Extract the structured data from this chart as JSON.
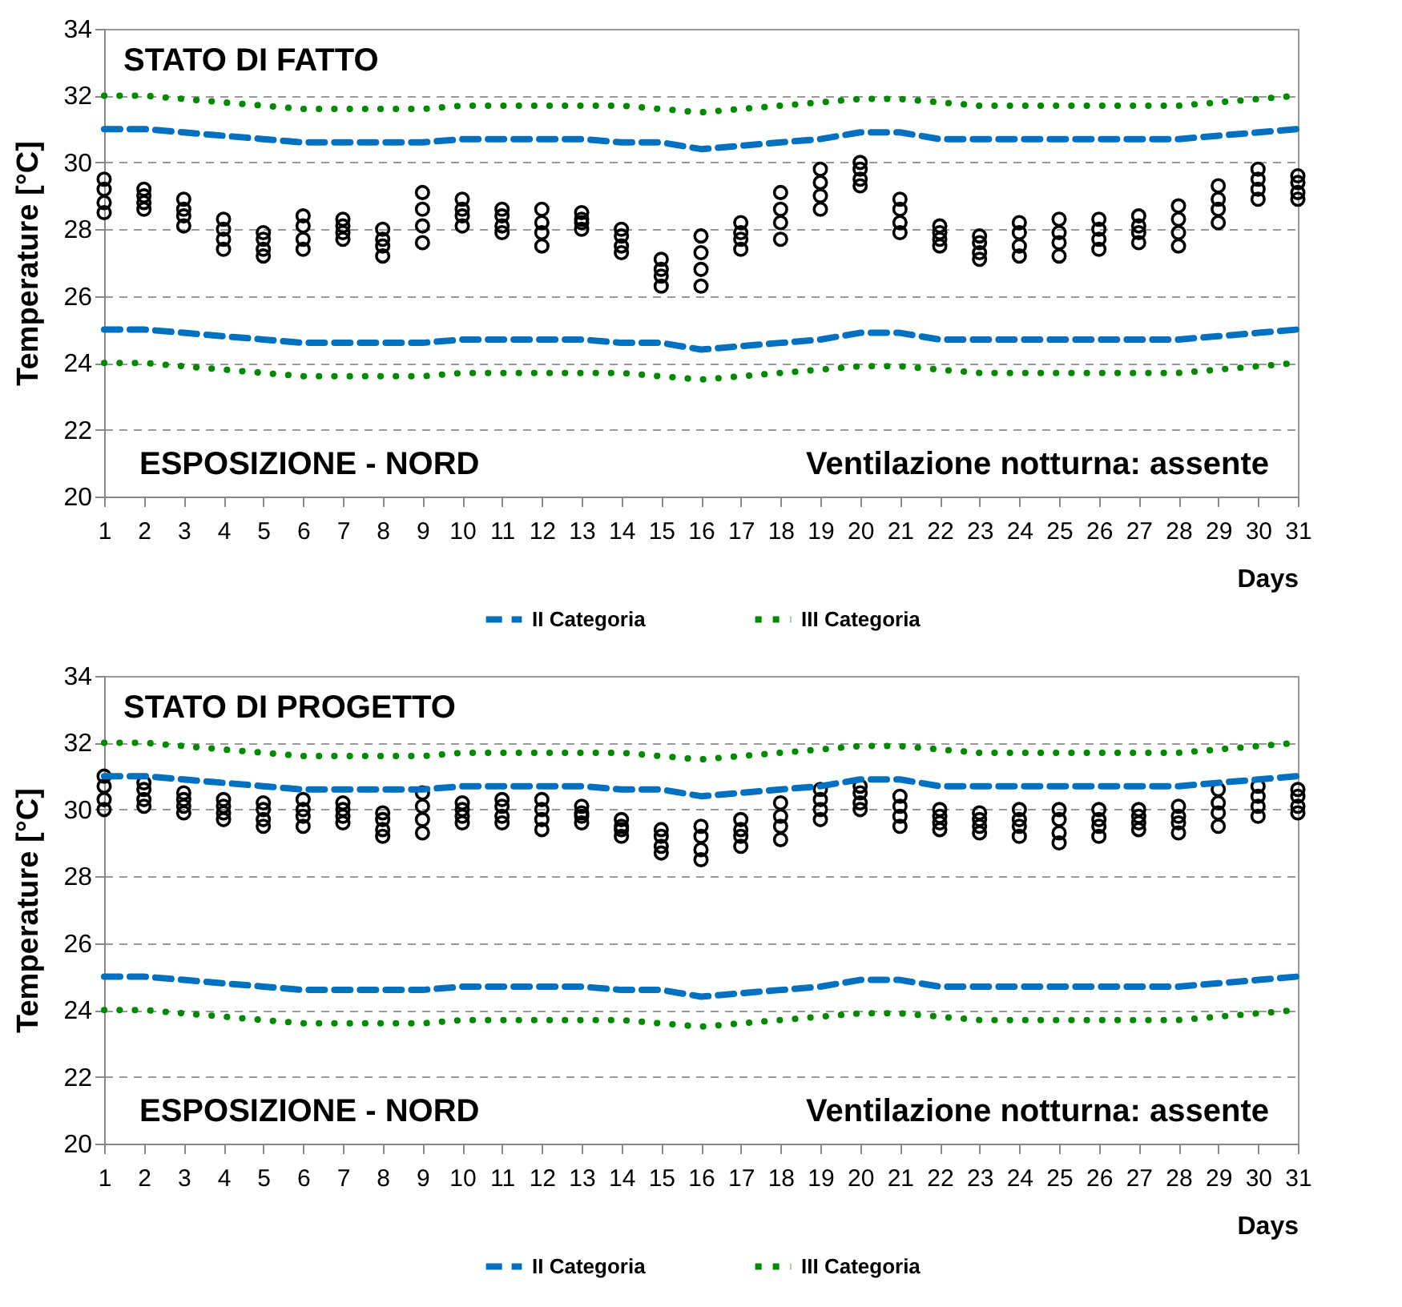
{
  "chart_data": [
    {
      "type": "scatter",
      "ylabel": "Temperature [°C]",
      "xlabel": "Days",
      "xlim": [
        1,
        31
      ],
      "xticks": [
        1,
        2,
        3,
        4,
        5,
        6,
        7,
        8,
        9,
        10,
        11,
        12,
        13,
        14,
        15,
        16,
        17,
        18,
        19,
        20,
        21,
        22,
        23,
        24,
        25,
        26,
        27,
        28,
        29,
        30,
        31
      ],
      "ylim": [
        20,
        34
      ],
      "yticks": [
        20,
        22,
        24,
        26,
        28,
        30,
        32,
        34
      ],
      "grid": "y",
      "legend": "bottom",
      "annotations": [
        "STATO DI FATTO",
        "ESPOSIZIONE - NORD",
        "Ventilazione notturna: assente"
      ],
      "series": [
        {
          "type": "scatter",
          "color": "#000000",
          "marker": "circle",
          "x": [
            1,
            1,
            1,
            1,
            2,
            2,
            2,
            2,
            3,
            3,
            3,
            3,
            4,
            4,
            4,
            4,
            5,
            5,
            5,
            5,
            6,
            6,
            6,
            6,
            7,
            7,
            7,
            7,
            8,
            8,
            8,
            8,
            9,
            9,
            9,
            9,
            10,
            10,
            10,
            10,
            11,
            11,
            11,
            11,
            12,
            12,
            12,
            12,
            13,
            13,
            13,
            13,
            14,
            14,
            14,
            14,
            15,
            15,
            15,
            15,
            16,
            16,
            16,
            16,
            17,
            17,
            17,
            17,
            18,
            18,
            18,
            18,
            19,
            19,
            19,
            19,
            20,
            20,
            20,
            20,
            21,
            21,
            21,
            21,
            22,
            22,
            22,
            22,
            23,
            23,
            23,
            23,
            24,
            24,
            24,
            24,
            25,
            25,
            25,
            25,
            26,
            26,
            26,
            26,
            27,
            27,
            27,
            27,
            28,
            28,
            28,
            28,
            29,
            29,
            29,
            29,
            30,
            30,
            30,
            30,
            31,
            31,
            31,
            31
          ],
          "values": [
            28.5,
            28.8,
            29.2,
            29.5,
            28.6,
            28.8,
            29.0,
            29.2,
            28.1,
            28.4,
            28.6,
            28.9,
            27.4,
            27.7,
            28.0,
            28.3,
            27.2,
            27.4,
            27.7,
            27.9,
            27.4,
            27.7,
            28.1,
            28.4,
            27.7,
            27.9,
            28.1,
            28.3,
            27.2,
            27.5,
            27.7,
            28.0,
            27.6,
            28.1,
            28.6,
            29.1,
            28.1,
            28.4,
            28.6,
            28.9,
            27.9,
            28.1,
            28.4,
            28.6,
            27.5,
            27.9,
            28.2,
            28.6,
            28.0,
            28.2,
            28.3,
            28.5,
            27.3,
            27.5,
            27.8,
            28.0,
            26.3,
            26.6,
            26.8,
            27.1,
            26.3,
            26.8,
            27.3,
            27.8,
            27.4,
            27.7,
            27.9,
            28.2,
            27.7,
            28.2,
            28.6,
            29.1,
            28.6,
            29.0,
            29.4,
            29.8,
            29.3,
            29.5,
            29.8,
            30.0,
            27.9,
            28.2,
            28.6,
            28.9,
            27.5,
            27.7,
            27.9,
            28.1,
            27.1,
            27.3,
            27.6,
            27.8,
            27.2,
            27.5,
            27.9,
            28.2,
            27.2,
            27.6,
            27.9,
            28.3,
            27.4,
            27.7,
            28.0,
            28.3,
            27.6,
            27.9,
            28.1,
            28.4,
            27.5,
            27.9,
            28.3,
            28.7,
            28.2,
            28.6,
            28.9,
            29.3,
            28.9,
            29.2,
            29.5,
            29.8,
            28.9,
            29.1,
            29.4,
            29.6
          ]
        },
        {
          "type": "line",
          "name": "II Categoria",
          "color": "#0070c0",
          "line_style": "dashed",
          "x": [
            1,
            2,
            3,
            4,
            5,
            6,
            7,
            8,
            9,
            10,
            11,
            12,
            13,
            14,
            15,
            16,
            17,
            18,
            19,
            20,
            21,
            22,
            23,
            24,
            25,
            26,
            27,
            28,
            29,
            30,
            31
          ],
          "values": [
            31.0,
            31.0,
            30.9,
            30.8,
            30.7,
            30.6,
            30.6,
            30.6,
            30.6,
            30.7,
            30.7,
            30.7,
            30.7,
            30.6,
            30.6,
            30.4,
            30.5,
            30.6,
            30.7,
            30.9,
            30.9,
            30.7,
            30.7,
            30.7,
            30.7,
            30.7,
            30.7,
            30.7,
            30.8,
            30.9,
            31.0
          ]
        },
        {
          "type": "line",
          "color": "#0070c0",
          "line_style": "dashed",
          "x": [
            1,
            2,
            3,
            4,
            5,
            6,
            7,
            8,
            9,
            10,
            11,
            12,
            13,
            14,
            15,
            16,
            17,
            18,
            19,
            20,
            21,
            22,
            23,
            24,
            25,
            26,
            27,
            28,
            29,
            30,
            31
          ],
          "values": [
            25.0,
            25.0,
            24.9,
            24.8,
            24.7,
            24.6,
            24.6,
            24.6,
            24.6,
            24.7,
            24.7,
            24.7,
            24.7,
            24.6,
            24.6,
            24.4,
            24.5,
            24.6,
            24.7,
            24.9,
            24.9,
            24.7,
            24.7,
            24.7,
            24.7,
            24.7,
            24.7,
            24.7,
            24.8,
            24.9,
            25.0
          ]
        },
        {
          "type": "line",
          "name": "III Categoria",
          "color": "#008a00",
          "line_style": "dotted",
          "x": [
            1,
            2,
            3,
            4,
            5,
            6,
            7,
            8,
            9,
            10,
            11,
            12,
            13,
            14,
            15,
            16,
            17,
            18,
            19,
            20,
            21,
            22,
            23,
            24,
            25,
            26,
            27,
            28,
            29,
            30,
            31
          ],
          "values": [
            32.0,
            32.0,
            31.9,
            31.8,
            31.7,
            31.6,
            31.6,
            31.6,
            31.6,
            31.7,
            31.7,
            31.7,
            31.7,
            31.7,
            31.6,
            31.5,
            31.6,
            31.7,
            31.8,
            31.9,
            31.9,
            31.8,
            31.7,
            31.7,
            31.7,
            31.7,
            31.7,
            31.7,
            31.8,
            31.9,
            32.0
          ]
        },
        {
          "type": "line",
          "color": "#008a00",
          "line_style": "dotted",
          "x": [
            1,
            2,
            3,
            4,
            5,
            6,
            7,
            8,
            9,
            10,
            11,
            12,
            13,
            14,
            15,
            16,
            17,
            18,
            19,
            20,
            21,
            22,
            23,
            24,
            25,
            26,
            27,
            28,
            29,
            30,
            31
          ],
          "values": [
            24.0,
            24.0,
            23.9,
            23.8,
            23.7,
            23.6,
            23.6,
            23.6,
            23.6,
            23.7,
            23.7,
            23.7,
            23.7,
            23.7,
            23.6,
            23.5,
            23.6,
            23.7,
            23.8,
            23.9,
            23.9,
            23.8,
            23.7,
            23.7,
            23.7,
            23.7,
            23.7,
            23.7,
            23.8,
            23.9,
            24.0
          ]
        }
      ]
    },
    {
      "type": "scatter",
      "ylabel": "Temperature [°C]",
      "xlabel": "Days",
      "xlim": [
        1,
        31
      ],
      "xticks": [
        1,
        2,
        3,
        4,
        5,
        6,
        7,
        8,
        9,
        10,
        11,
        12,
        13,
        14,
        15,
        16,
        17,
        18,
        19,
        20,
        21,
        22,
        23,
        24,
        25,
        26,
        27,
        28,
        29,
        30,
        31
      ],
      "ylim": [
        20,
        34
      ],
      "yticks": [
        20,
        22,
        24,
        26,
        28,
        30,
        32,
        34
      ],
      "grid": "y",
      "legend": "bottom",
      "annotations": [
        "STATO DI PROGETTO",
        "ESPOSIZIONE - NORD",
        "Ventilazione notturna: assente"
      ],
      "series": [
        {
          "type": "scatter",
          "color": "#000000",
          "marker": "circle",
          "x": [
            1,
            1,
            1,
            1,
            2,
            2,
            2,
            2,
            3,
            3,
            3,
            3,
            4,
            4,
            4,
            4,
            5,
            5,
            5,
            5,
            6,
            6,
            6,
            6,
            7,
            7,
            7,
            7,
            8,
            8,
            8,
            8,
            9,
            9,
            9,
            9,
            10,
            10,
            10,
            10,
            11,
            11,
            11,
            11,
            12,
            12,
            12,
            12,
            13,
            13,
            13,
            13,
            14,
            14,
            14,
            14,
            15,
            15,
            15,
            15,
            16,
            16,
            16,
            16,
            17,
            17,
            17,
            17,
            18,
            18,
            18,
            18,
            19,
            19,
            19,
            19,
            20,
            20,
            20,
            20,
            21,
            21,
            21,
            21,
            22,
            22,
            22,
            22,
            23,
            23,
            23,
            23,
            24,
            24,
            24,
            24,
            25,
            25,
            25,
            25,
            26,
            26,
            26,
            26,
            27,
            27,
            27,
            27,
            28,
            28,
            28,
            28,
            29,
            29,
            29,
            29,
            30,
            30,
            30,
            30,
            31,
            31,
            31,
            31
          ],
          "values": [
            30.0,
            30.3,
            30.7,
            31.0,
            30.1,
            30.3,
            30.6,
            30.8,
            29.9,
            30.1,
            30.3,
            30.5,
            29.7,
            29.9,
            30.1,
            30.3,
            29.5,
            29.7,
            30.0,
            30.2,
            29.5,
            29.8,
            30.0,
            30.3,
            29.6,
            29.8,
            30.0,
            30.2,
            29.2,
            29.4,
            29.7,
            29.9,
            29.3,
            29.7,
            30.1,
            30.5,
            29.6,
            29.8,
            30.0,
            30.2,
            29.6,
            29.8,
            30.1,
            30.3,
            29.4,
            29.7,
            30.0,
            30.3,
            29.6,
            29.8,
            29.9,
            30.1,
            29.2,
            29.4,
            29.5,
            29.7,
            28.7,
            28.9,
            29.2,
            29.4,
            28.5,
            28.8,
            29.2,
            29.5,
            28.9,
            29.2,
            29.4,
            29.7,
            29.1,
            29.5,
            29.8,
            30.2,
            29.7,
            30.0,
            30.3,
            30.6,
            30.0,
            30.2,
            30.5,
            30.7,
            29.5,
            29.8,
            30.1,
            30.4,
            29.4,
            29.6,
            29.8,
            30.0,
            29.3,
            29.5,
            29.7,
            29.9,
            29.2,
            29.5,
            29.7,
            30.0,
            29.0,
            29.3,
            29.7,
            30.0,
            29.2,
            29.5,
            29.7,
            30.0,
            29.4,
            29.6,
            29.8,
            30.0,
            29.3,
            29.6,
            29.8,
            30.1,
            29.5,
            29.9,
            30.2,
            30.6,
            29.8,
            30.1,
            30.4,
            30.7,
            29.9,
            30.1,
            30.4,
            30.6
          ]
        },
        {
          "type": "line",
          "name": "II Categoria",
          "color": "#0070c0",
          "line_style": "dashed",
          "x": [
            1,
            2,
            3,
            4,
            5,
            6,
            7,
            8,
            9,
            10,
            11,
            12,
            13,
            14,
            15,
            16,
            17,
            18,
            19,
            20,
            21,
            22,
            23,
            24,
            25,
            26,
            27,
            28,
            29,
            30,
            31
          ],
          "values": [
            31.0,
            31.0,
            30.9,
            30.8,
            30.7,
            30.6,
            30.6,
            30.6,
            30.6,
            30.7,
            30.7,
            30.7,
            30.7,
            30.6,
            30.6,
            30.4,
            30.5,
            30.6,
            30.7,
            30.9,
            30.9,
            30.7,
            30.7,
            30.7,
            30.7,
            30.7,
            30.7,
            30.7,
            30.8,
            30.9,
            31.0
          ]
        },
        {
          "type": "line",
          "color": "#0070c0",
          "line_style": "dashed",
          "x": [
            1,
            2,
            3,
            4,
            5,
            6,
            7,
            8,
            9,
            10,
            11,
            12,
            13,
            14,
            15,
            16,
            17,
            18,
            19,
            20,
            21,
            22,
            23,
            24,
            25,
            26,
            27,
            28,
            29,
            30,
            31
          ],
          "values": [
            25.0,
            25.0,
            24.9,
            24.8,
            24.7,
            24.6,
            24.6,
            24.6,
            24.6,
            24.7,
            24.7,
            24.7,
            24.7,
            24.6,
            24.6,
            24.4,
            24.5,
            24.6,
            24.7,
            24.9,
            24.9,
            24.7,
            24.7,
            24.7,
            24.7,
            24.7,
            24.7,
            24.7,
            24.8,
            24.9,
            25.0
          ]
        },
        {
          "type": "line",
          "name": "III Categoria",
          "color": "#008a00",
          "line_style": "dotted",
          "x": [
            1,
            2,
            3,
            4,
            5,
            6,
            7,
            8,
            9,
            10,
            11,
            12,
            13,
            14,
            15,
            16,
            17,
            18,
            19,
            20,
            21,
            22,
            23,
            24,
            25,
            26,
            27,
            28,
            29,
            30,
            31
          ],
          "values": [
            32.0,
            32.0,
            31.9,
            31.8,
            31.7,
            31.6,
            31.6,
            31.6,
            31.6,
            31.7,
            31.7,
            31.7,
            31.7,
            31.7,
            31.6,
            31.5,
            31.6,
            31.7,
            31.8,
            31.9,
            31.9,
            31.8,
            31.7,
            31.7,
            31.7,
            31.7,
            31.7,
            31.7,
            31.8,
            31.9,
            32.0
          ]
        },
        {
          "type": "line",
          "color": "#008a00",
          "line_style": "dotted",
          "x": [
            1,
            2,
            3,
            4,
            5,
            6,
            7,
            8,
            9,
            10,
            11,
            12,
            13,
            14,
            15,
            16,
            17,
            18,
            19,
            20,
            21,
            22,
            23,
            24,
            25,
            26,
            27,
            28,
            29,
            30,
            31
          ],
          "values": [
            24.0,
            24.0,
            23.9,
            23.8,
            23.7,
            23.6,
            23.6,
            23.6,
            23.6,
            23.7,
            23.7,
            23.7,
            23.7,
            23.7,
            23.6,
            23.5,
            23.6,
            23.7,
            23.8,
            23.9,
            23.9,
            23.8,
            23.7,
            23.7,
            23.7,
            23.7,
            23.7,
            23.7,
            23.8,
            23.9,
            24.0
          ]
        }
      ]
    }
  ]
}
